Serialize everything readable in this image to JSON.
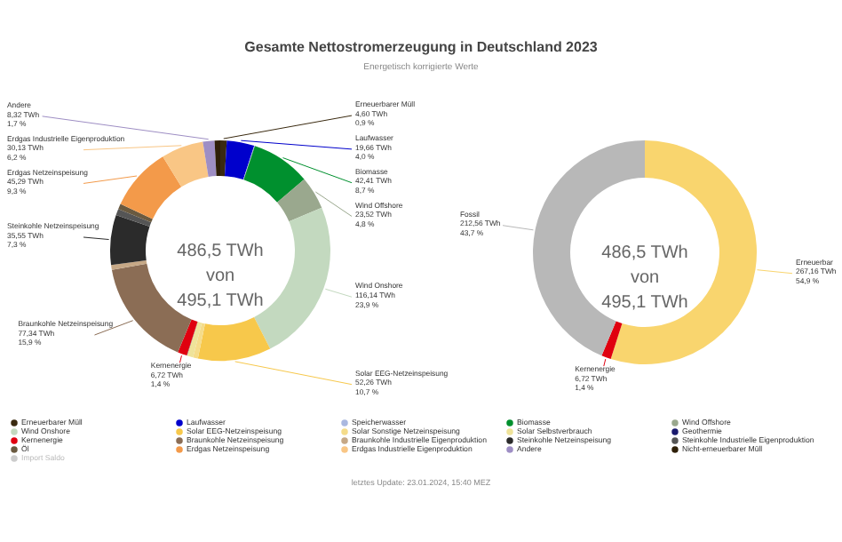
{
  "chart_data": [
    {
      "type": "donut",
      "title": "Gesamte Nettostromerzeugung in Deutschland 2023",
      "subtitle": "Energetisch korrigierte Werte",
      "categories": [
        "Erneuerbarer Müll",
        "Laufwasser",
        "Speicherwasser",
        "Biomasse",
        "Wind Offshore",
        "Wind Onshore",
        "Solar EEG-Netzeinspeisung",
        "Solar Sonstige Netzeinspeisung",
        "Solar Selbstverbrauch",
        "Geothermie",
        "Kernenergie",
        "Braunkohle Netzeinspeisung",
        "Braunkohle Industrielle Eigenproduktion",
        "Steinkohle Netzeinspeisung",
        "Steinkohle Industrielle Eigenproduktion",
        "Öl",
        "Erdgas Netzeinspeisung",
        "Erdgas Industrielle Eigenproduktion",
        "Andere",
        "Nicht-erneuerbarer Müll",
        "Import Saldo"
      ],
      "values": [
        4.6,
        19.66,
        0.5,
        42.41,
        23.52,
        116.14,
        52.26,
        3.5,
        4.4,
        0.17,
        6.72,
        77.34,
        3.5,
        35.55,
        4.5,
        3.9,
        45.29,
        30.13,
        8.32,
        4.03,
        null
      ],
      "colors": [
        "#3a2a10",
        "#0000cc",
        "#aab8e0",
        "#00902e",
        "#9aa88e",
        "#c3d9bf",
        "#f7c84b",
        "#f5dc8a",
        "#efe39a",
        "#1a1a6e",
        "#e0000f",
        "#8b6d55",
        "#c6a886",
        "#2b2b2b",
        "#555555",
        "#6a5a40",
        "#f39a4a",
        "#f9c685",
        "#9e8ec4",
        "#2e1f08",
        "#cccccc"
      ],
      "value_labels": [
        "4,60 TWh\n0,9 %",
        "19,66 TWh\n4,0 %",
        null,
        "42,41 TWh\n8,7 %",
        "23,52 TWh\n4,8 %",
        "116,14 TWh\n23,9 %",
        "52,26 TWh\n10,7 %",
        null,
        null,
        null,
        "6,72 TWh\n1,4 %",
        "77,34 TWh\n15,9 %",
        null,
        "35,55 TWh\n7,3 %",
        null,
        null,
        "45,29 TWh\n9,3 %",
        "30,13 TWh\n6,2 %",
        "8,32 TWh\n1,7 %",
        null,
        null
      ],
      "annotations": [
        "486,5 TWh\nvon\n495,1 TWh",
        "letztes Update: 23.01.2024, 15:40 MEZ"
      ],
      "legend": "bottom"
    },
    {
      "type": "donut",
      "categories": [
        "Erneuerbar",
        "Kernenergie",
        "Fossil"
      ],
      "values": [
        267.16,
        6.72,
        212.56
      ],
      "colors": [
        "#f9d56e",
        "#e0000f",
        "#b8b8b8"
      ],
      "value_labels": [
        "267,16 TWh\n54,9 %",
        "6,72 TWh\n1,4 %",
        "212,56 TWh\n43,7 %"
      ],
      "annotations": [
        "486,5 TWh\nvon\n495,1 TWh"
      ]
    }
  ]
}
